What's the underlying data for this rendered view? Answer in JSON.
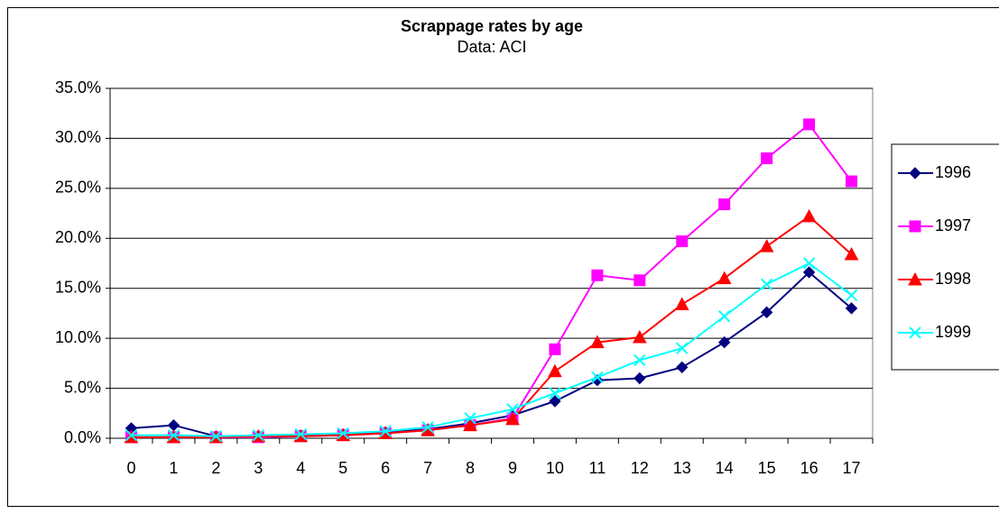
{
  "chart_data": {
    "type": "line",
    "title": "Scrappage rates by age",
    "subtitle": "Data: ACI",
    "categories": [
      "0",
      "1",
      "2",
      "3",
      "4",
      "5",
      "6",
      "7",
      "8",
      "9",
      "10",
      "11",
      "12",
      "13",
      "14",
      "15",
      "16",
      "17"
    ],
    "series": [
      {
        "name": "1996",
        "color": "#000080",
        "marker": "diamond",
        "values": [
          1.0,
          1.3,
          0.2,
          0.2,
          0.3,
          0.4,
          0.6,
          0.9,
          1.5,
          2.3,
          3.7,
          5.8,
          6.0,
          7.1,
          9.6,
          12.6,
          16.6,
          13.0
        ]
      },
      {
        "name": "1997",
        "color": "#ff00ff",
        "marker": "square",
        "values": [
          0.1,
          0.1,
          0.1,
          0.1,
          0.2,
          0.3,
          0.5,
          0.8,
          1.3,
          2.0,
          8.9,
          16.3,
          15.8,
          19.7,
          23.4,
          28.0,
          31.4,
          25.7
        ]
      },
      {
        "name": "1998",
        "color": "#ff0000",
        "marker": "triangle",
        "values": [
          0.1,
          0.1,
          0.1,
          0.2,
          0.2,
          0.3,
          0.5,
          0.8,
          1.3,
          1.9,
          6.7,
          9.6,
          10.1,
          13.4,
          16.0,
          19.2,
          22.2,
          18.4
        ]
      },
      {
        "name": "1999",
        "color": "#00ffff",
        "marker": "x",
        "values": [
          0.3,
          0.3,
          0.2,
          0.3,
          0.4,
          0.5,
          0.7,
          1.1,
          2.0,
          2.9,
          4.5,
          6.1,
          7.8,
          9.0,
          12.2,
          15.4,
          17.5,
          14.3
        ]
      }
    ],
    "ylim": [
      0,
      35
    ],
    "yticks": [
      {
        "value": 0,
        "label": "0.0%"
      },
      {
        "value": 5,
        "label": "5.0%"
      },
      {
        "value": 10,
        "label": "10.0%"
      },
      {
        "value": 15,
        "label": "15.0%"
      },
      {
        "value": 20,
        "label": "20.0%"
      },
      {
        "value": 25,
        "label": "25.0%"
      },
      {
        "value": 30,
        "label": "30.0%"
      },
      {
        "value": 35,
        "label": "35.0%"
      }
    ],
    "grid": true,
    "legend": "right"
  }
}
